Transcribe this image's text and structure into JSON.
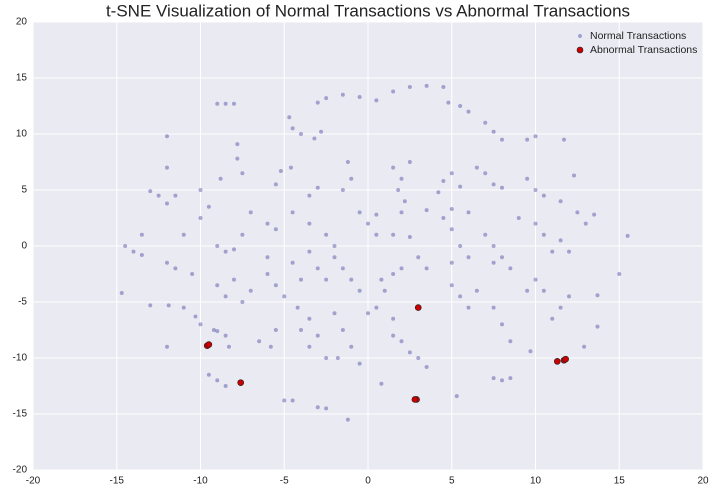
{
  "chart_data": {
    "type": "scatter",
    "title": "t-SNE Visualization of Normal Transactions vs Abnormal Transactions",
    "xlim": [
      -20,
      20
    ],
    "ylim": [
      -20,
      20
    ],
    "xticks": [
      -20,
      -15,
      -10,
      -5,
      0,
      5,
      10,
      15,
      20
    ],
    "yticks": [
      -20,
      -15,
      -10,
      -5,
      0,
      5,
      10,
      15,
      20
    ],
    "grid": true,
    "legend": "upper right",
    "series": [
      {
        "name": "Normal Transactions",
        "color": "#1a1a8c",
        "x": [
          -2.5,
          -1.5,
          -0.5,
          0.5,
          -3,
          1.5,
          2.5,
          3.5,
          4.5,
          -4.7,
          -4.5,
          -4,
          -3.2,
          -2.8,
          -9,
          -8.5,
          -8,
          4.8,
          5.5,
          6,
          7,
          7.5,
          8,
          9.5,
          10,
          -12,
          -12,
          12.3,
          11.7,
          -7.8,
          -7.8,
          -7.5,
          -8.8,
          -11.5,
          -12.5,
          -13,
          -12,
          -5.2,
          -4.6,
          -5.5,
          -3,
          -3.5,
          -1.2,
          -1,
          -1.5,
          -10,
          -9.5,
          -10,
          -11,
          -7,
          -6,
          -5.5,
          -7.5,
          -4.5,
          -3.5,
          -2.5,
          -2,
          -0.5,
          0,
          0.5,
          1.5,
          2,
          1.8,
          2.5,
          2.2,
          4.5,
          5,
          5.5,
          4.2,
          6.5,
          7,
          7.5,
          8,
          9.5,
          10,
          10.5,
          11.5,
          12.5,
          13,
          13.5,
          0.5,
          2,
          3.5,
          5,
          6,
          1.5,
          2.5,
          3,
          2,
          3.5,
          5,
          5.5,
          6,
          5,
          4.5,
          7,
          7.5,
          8,
          8.5,
          7.5,
          9,
          10,
          10.5,
          11,
          11.5,
          12,
          -14.5,
          -14,
          -13.5,
          -13.5,
          -12,
          -11.5,
          -10.5,
          -9,
          -8.5,
          -8,
          -9,
          -8.5,
          -7.5,
          -7,
          -8,
          -6,
          -6,
          -5.5,
          -4.5,
          -4,
          -5,
          -3.5,
          -3,
          -2.5,
          -2,
          -1.5,
          -1,
          -0.5,
          0.8,
          1.5,
          1,
          -10,
          -11,
          -13,
          -14.7,
          -9.2,
          -8.5,
          -8.3,
          -9,
          -4.2,
          -3.5,
          -4,
          -3,
          -3.5,
          -2.5,
          -5.5,
          -5.8,
          -6.5,
          -2,
          -1.5,
          -1,
          -0.5,
          -1.8,
          0,
          0.5,
          1.5,
          1.5,
          2,
          2.5,
          3,
          3.5,
          5,
          5.5,
          6,
          6.5,
          7.5,
          8,
          8.5,
          9.5,
          10,
          10.5,
          11,
          11.5,
          12,
          -5,
          -4.5,
          -3,
          -2.5,
          -9.5,
          -9,
          -8.5,
          7.5,
          8.5,
          8,
          15.5,
          15,
          13.7,
          13.7,
          12.9,
          9.7,
          5.3,
          0.8,
          -1.2,
          -12,
          -10.3,
          -11.9
        ],
        "values": [
          13.2,
          13.5,
          13.3,
          13,
          12.8,
          13.8,
          14.2,
          14.3,
          14.2,
          11.5,
          10.5,
          10,
          9.6,
          10.2,
          12.7,
          12.7,
          12.7,
          12.8,
          12.5,
          12,
          11,
          10.2,
          9.5,
          9.5,
          9.8,
          9.8,
          7,
          6.3,
          9.5,
          9.1,
          7.8,
          6.5,
          6,
          4.5,
          4.5,
          4.9,
          3.8,
          6.7,
          7,
          5.5,
          5.2,
          4.5,
          7.5,
          6,
          5,
          5,
          3.5,
          2.5,
          1,
          3,
          2,
          1.5,
          1,
          3,
          2,
          1,
          0,
          3,
          2,
          1,
          7,
          6,
          5,
          7.5,
          4,
          5.8,
          6.5,
          5.3,
          4.8,
          7,
          6.5,
          5.5,
          5.2,
          6,
          5,
          4.5,
          4,
          3,
          2,
          2.8,
          2.8,
          3,
          3.2,
          3.3,
          3,
          1,
          0.8,
          -1,
          -2,
          -2,
          1.5,
          0,
          -1,
          -1.5,
          2.5,
          1,
          0,
          -1,
          -2,
          -1.5,
          2.5,
          2,
          1,
          -0.5,
          0.5,
          -0.5,
          0,
          -0.5,
          1,
          -0.8,
          -1.5,
          -2,
          -2.5,
          0,
          -0.5,
          -0.3,
          -3.5,
          -4.5,
          -5,
          -4,
          -3,
          -1,
          -2.5,
          -3.5,
          -1.5,
          -3,
          -4.5,
          -0.5,
          -2,
          -3,
          -1,
          -2,
          -3,
          -4,
          -3,
          -2.5,
          -4,
          -7,
          -5.5,
          -5.3,
          -4.2,
          -7.5,
          -8,
          -9,
          -7.6,
          -5.5,
          -6.5,
          -7.5,
          -8,
          -9,
          -10,
          -7.5,
          -9,
          -8.5,
          -6,
          -7.5,
          -9,
          -10.5,
          -10,
          -6,
          -5.5,
          -6.5,
          -8,
          -8.5,
          -9.5,
          -10,
          -10.8,
          -3.5,
          -4.5,
          -5.5,
          -4,
          -5.5,
          -7,
          -8.5,
          -4,
          -3,
          -4,
          -6.5,
          -5.5,
          -4.5,
          -13.8,
          -13.8,
          -14.4,
          -14.5,
          -11.5,
          -12,
          -12.5,
          -11.8,
          -11.8,
          -12,
          0.9,
          -2.5,
          -4.4,
          -7.2,
          -9,
          -9.4,
          -13.4,
          -12.3,
          -15.5,
          -9,
          -6.3,
          -5.3
        ]
      },
      {
        "name": "Abnormal Transactions",
        "color": "#cc0000",
        "x": [
          -9.6,
          -9.5,
          -7.6,
          2.9,
          2.8,
          3,
          11.3,
          11.7,
          11.8
        ],
        "values": [
          -8.9,
          -8.8,
          -12.2,
          -13.7,
          -13.7,
          -5.5,
          -10.3,
          -10.2,
          -10.1
        ]
      }
    ]
  }
}
